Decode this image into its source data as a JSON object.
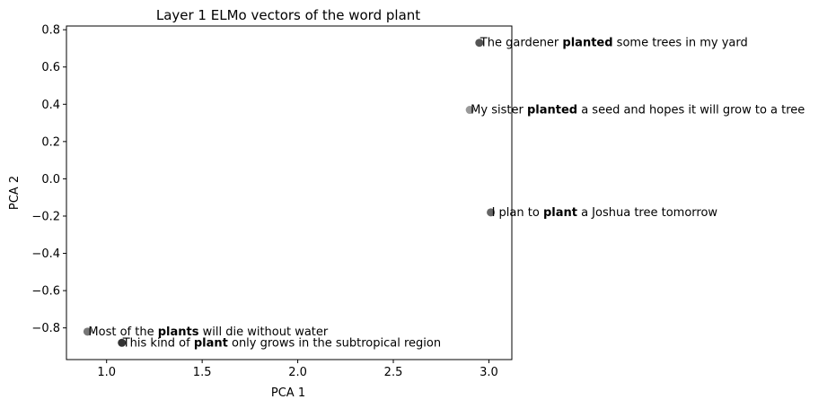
{
  "chart_data": {
    "type": "scatter",
    "title": "Layer 1 ELMo vectors of the word plant",
    "xlabel": "PCA 1",
    "ylabel": "PCA 2",
    "xlim": [
      0.79,
      3.12
    ],
    "ylim": [
      -0.97,
      0.82
    ],
    "xticks": [
      1.0,
      1.5,
      2.0,
      2.5,
      3.0
    ],
    "xtick_labels": [
      "1.0",
      "1.5",
      "2.0",
      "2.5",
      "3.0"
    ],
    "yticks": [
      -0.8,
      -0.6,
      -0.4,
      -0.2,
      0.0,
      0.2,
      0.4,
      0.6,
      0.8
    ],
    "ytick_labels": [
      "−0.8",
      "−0.6",
      "−0.4",
      "−0.2",
      "0.0",
      "0.2",
      "0.4",
      "0.6",
      "0.8"
    ],
    "grid": false,
    "points": [
      {
        "x": 2.95,
        "y": 0.73,
        "color": "#555555",
        "label_pre": "The gardener ",
        "label_kw": "planted",
        "label_post": " some trees in my yard"
      },
      {
        "x": 2.9,
        "y": 0.37,
        "color": "#999999",
        "label_pre": "My sister ",
        "label_kw": "planted",
        "label_post": " a seed and hopes it will grow to a tree"
      },
      {
        "x": 3.01,
        "y": -0.18,
        "color": "#666666",
        "label_pre": "I plan to ",
        "label_kw": "plant",
        "label_post": " a Joshua tree tomorrow"
      },
      {
        "x": 0.9,
        "y": -0.82,
        "color": "#777777",
        "label_pre": "Most of the ",
        "label_kw": "plants",
        "label_post": " will die without water"
      },
      {
        "x": 1.08,
        "y": -0.88,
        "color": "#333333",
        "label_pre": "This kind of ",
        "label_kw": "plant",
        "label_post": " only grows in the subtropical region"
      }
    ]
  }
}
